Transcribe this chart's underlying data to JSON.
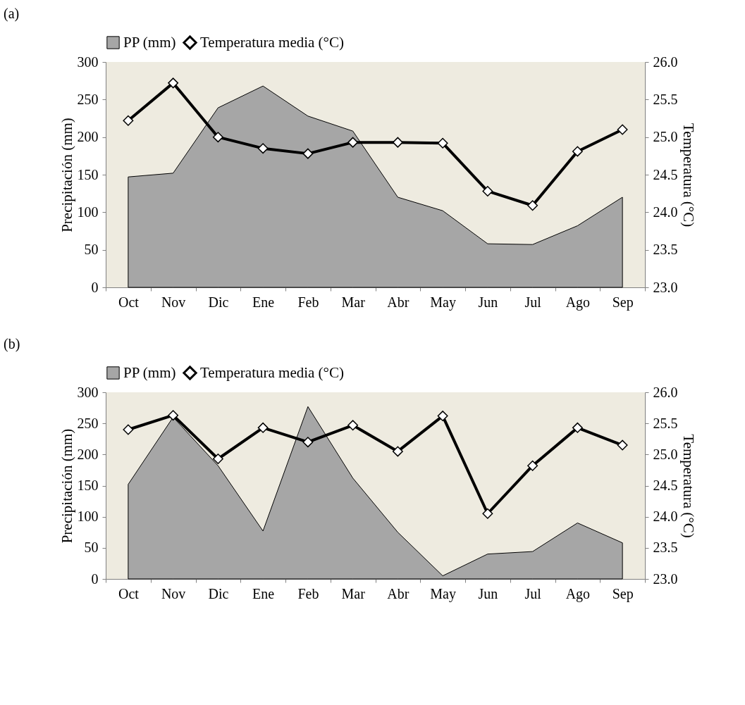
{
  "chart_data": [
    {
      "type": "area",
      "annotations": [
        "(a)"
      ],
      "categories": [
        "Oct",
        "Nov",
        "Dic",
        "Ene",
        "Feb",
        "Mar",
        "Abr",
        "May",
        "Jun",
        "Jul",
        "Ago",
        "Sep"
      ],
      "ylabel": "Precipitación (mm)",
      "y2label": "Temperatura (°C)",
      "legend": "top",
      "grid": false,
      "ylim": [
        0,
        300
      ],
      "yticks": [
        0,
        50,
        100,
        150,
        200,
        250,
        300
      ],
      "y2lim": [
        23,
        26
      ],
      "y2ticks": [
        {
          "value": 23,
          "label": "23.0"
        },
        {
          "value": 23.5,
          "label": "23.5"
        },
        {
          "value": 24,
          "label": "24.0"
        },
        {
          "value": 24.5,
          "label": "24.5"
        },
        {
          "value": 25,
          "label": "25.0"
        },
        {
          "value": 25.5,
          "label": "25.5"
        },
        {
          "value": 26,
          "label": "26.0"
        }
      ],
      "series": [
        {
          "name": "PP (mm)",
          "color": "#a6a6a6",
          "values": [
            147,
            152,
            239,
            268,
            228,
            208,
            120,
            102,
            58,
            57,
            82,
            120
          ]
        },
        {
          "name": "Temperatura media (°C)",
          "type": "line",
          "marker": "diamond",
          "axis": "y2",
          "color": "#000000",
          "values": [
            25.22,
            25.72,
            25.0,
            24.85,
            24.78,
            24.93,
            24.93,
            24.92,
            24.28,
            24.09,
            24.81,
            25.1
          ]
        }
      ]
    },
    {
      "type": "area",
      "annotations": [
        "(b)"
      ],
      "categories": [
        "Oct",
        "Nov",
        "Dic",
        "Ene",
        "Feb",
        "Mar",
        "Abr",
        "May",
        "Jun",
        "Jul",
        "Ago",
        "Sep"
      ],
      "ylabel": "Precipitación (mm)",
      "y2label": "Temperatura (°C)",
      "legend": "top",
      "grid": false,
      "ylim": [
        0,
        300
      ],
      "yticks": [
        0,
        50,
        100,
        150,
        200,
        250,
        300
      ],
      "y2lim": [
        23,
        26
      ],
      "y2ticks": [
        {
          "value": 23,
          "label": "23.0"
        },
        {
          "value": 23.5,
          "label": "23.5"
        },
        {
          "value": 24,
          "label": "24.0"
        },
        {
          "value": 24.5,
          "label": "24.5"
        },
        {
          "value": 25,
          "label": "25.0"
        },
        {
          "value": 25.5,
          "label": "25.5"
        },
        {
          "value": 26,
          "label": "26.0"
        }
      ],
      "series": [
        {
          "name": "PP (mm)",
          "color": "#a6a6a6",
          "values": [
            152,
            260,
            182,
            77,
            277,
            162,
            75,
            5,
            40,
            44,
            90,
            58
          ]
        },
        {
          "name": "Temperatura media (°C)",
          "type": "line",
          "marker": "diamond",
          "axis": "y2",
          "color": "#000000",
          "values": [
            25.4,
            25.63,
            24.93,
            25.43,
            25.2,
            25.47,
            25.05,
            25.62,
            24.05,
            24.82,
            25.43,
            25.15
          ]
        }
      ]
    }
  ]
}
